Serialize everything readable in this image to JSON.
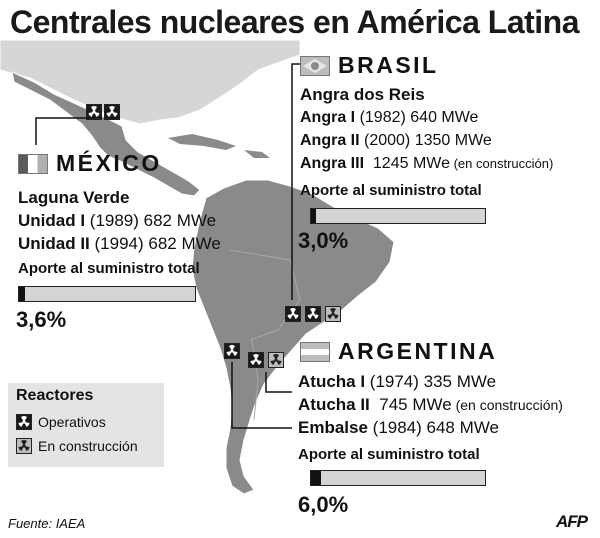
{
  "title": "Centrales nucleares en América Latina",
  "brasil": {
    "name": "BRASIL",
    "site": "Angra dos Reis",
    "units": [
      {
        "name": "Angra I",
        "detail": " (1982) 640 MWe",
        "status": ""
      },
      {
        "name": "Angra II",
        "detail": " (2000) 1350 MWe",
        "status": ""
      },
      {
        "name": "Angra III",
        "detail": "  1245 MWe",
        "status": " (en construcción)"
      }
    ],
    "aporte_label": "Aporte al suministro total",
    "aporte_value": "3,0%",
    "aporte_fraction": 0.03
  },
  "mexico": {
    "name": "MÉXICO",
    "site": "Laguna Verde",
    "units": [
      {
        "name": "Unidad I",
        "detail": " (1989) 682 MWe"
      },
      {
        "name": "Unidad II",
        "detail": " (1994) 682 MWe"
      }
    ],
    "aporte_label": "Aporte al suministro total",
    "aporte_value": "3,6%",
    "aporte_fraction": 0.036
  },
  "argentina": {
    "name": "ARGENTINA",
    "units": [
      {
        "name": "Atucha I",
        "detail": " (1974) 335 MWe",
        "status": ""
      },
      {
        "name": "Atucha II",
        "detail": "  745 MWe",
        "status": " (en construcción)"
      },
      {
        "name": "Embalse",
        "detail": " (1984) 648 MWe",
        "status": ""
      }
    ],
    "aporte_label": "Aporte al suministro total",
    "aporte_value": "6,0%",
    "aporte_fraction": 0.06
  },
  "legend": {
    "title": "Reactores",
    "operativos": "Operativos",
    "construccion": "En construcción"
  },
  "source": "Fuente: IAEA",
  "agency": "AFP",
  "colors": {
    "map_land": "#8a8a8a",
    "sea": "#ffffff",
    "operativo_icon": "#1a1a1a",
    "construccion_icon": "#bcbcbc",
    "bar_bg": "#d4d4d4"
  }
}
